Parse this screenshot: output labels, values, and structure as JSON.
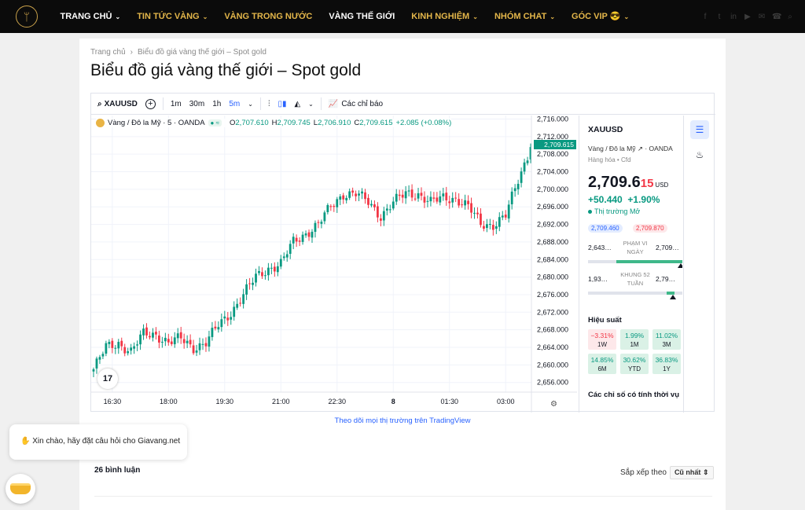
{
  "nav": {
    "items": [
      {
        "label": "TRANG CHỦ",
        "has_dropdown": true,
        "color": "white"
      },
      {
        "label": "TIN TỨC VÀNG",
        "has_dropdown": true,
        "color": "gold"
      },
      {
        "label": "VÀNG TRONG NƯỚC",
        "has_dropdown": false,
        "color": "gold"
      },
      {
        "label": "VÀNG THẾ GIỚI",
        "has_dropdown": false,
        "color": "white"
      },
      {
        "label": "KINH NGHIỆM",
        "has_dropdown": true,
        "color": "gold"
      },
      {
        "label": "NHÓM CHAT",
        "has_dropdown": true,
        "color": "gold"
      },
      {
        "label": "GÓC VIP 😎",
        "has_dropdown": true,
        "color": "gold"
      }
    ],
    "social_icons": [
      "facebook-icon",
      "twitter-icon",
      "linkedin-icon",
      "youtube-icon",
      "email-icon",
      "phone-icon",
      "search-icon"
    ],
    "gold_color": "#e3b64a"
  },
  "breadcrumb": {
    "home": "Trang chủ",
    "current": "Biểu đồ giá vàng thế giới – Spot gold"
  },
  "page_title": "Biểu đồ giá vàng thế giới – Spot gold",
  "toolbar": {
    "symbol": "XAUUSD",
    "intervals": [
      "1m",
      "30m",
      "1h",
      "5m"
    ],
    "active_interval": "5m",
    "indicators_label": "Các chỉ báo"
  },
  "legend": {
    "title": "Vàng / Đô la Mỹ · 5 · OANDA",
    "o_key": "O",
    "o": "2,707.610",
    "h_key": "H",
    "h": "2,709.745",
    "l_key": "L",
    "l": "2,706.910",
    "c_key": "C",
    "c": "2,709.615",
    "change": "+2.085 (+0.08%)"
  },
  "price_tag": "2,709.615",
  "chart_data": {
    "type": "candlestick",
    "y_ticks": [
      2716,
      2712,
      2708,
      2704,
      2700,
      2696,
      2692,
      2688,
      2684,
      2680,
      2676,
      2672,
      2668,
      2664,
      2660,
      2656
    ],
    "y_tick_labels": [
      "2,716.000",
      "2,712.000",
      "2,708.000",
      "2,704.000",
      "2,700.000",
      "2,696.000",
      "2,692.000",
      "2,688.000",
      "2,684.000",
      "2,680.000",
      "2,676.000",
      "2,672.000",
      "2,668.000",
      "2,664.000",
      "2,660.000",
      "2,656.000"
    ],
    "ylim": [
      2653.8,
      2716.8
    ],
    "x_tick_labels": [
      "16:30",
      "18:00",
      "19:30",
      "21:00",
      "22:30",
      "8",
      "01:30",
      "03:00"
    ],
    "x_tick_positions": [
      6,
      24,
      42,
      60,
      78,
      96,
      114,
      132
    ],
    "x_count": 141,
    "up_color": "#089981",
    "down_color": "#f23645",
    "close_anchors": [
      [
        0,
        2659
      ],
      [
        4,
        2664
      ],
      [
        8,
        2665
      ],
      [
        12,
        2663
      ],
      [
        16,
        2667
      ],
      [
        20,
        2667
      ],
      [
        24,
        2665
      ],
      [
        28,
        2666
      ],
      [
        32,
        2664
      ],
      [
        36,
        2665
      ],
      [
        40,
        2669
      ],
      [
        44,
        2672
      ],
      [
        48,
        2676
      ],
      [
        52,
        2680
      ],
      [
        56,
        2682
      ],
      [
        60,
        2683
      ],
      [
        64,
        2688
      ],
      [
        68,
        2690
      ],
      [
        72,
        2692
      ],
      [
        76,
        2696
      ],
      [
        80,
        2699
      ],
      [
        84,
        2699
      ],
      [
        88,
        2697
      ],
      [
        92,
        2694
      ],
      [
        96,
        2697
      ],
      [
        100,
        2699
      ],
      [
        104,
        2699
      ],
      [
        108,
        2697
      ],
      [
        112,
        2698
      ],
      [
        116,
        2698
      ],
      [
        120,
        2696
      ],
      [
        124,
        2692
      ],
      [
        128,
        2692
      ],
      [
        132,
        2694
      ],
      [
        136,
        2702
      ],
      [
        140,
        2709.615
      ]
    ]
  },
  "sidebar": {
    "symbol": "XAUUSD",
    "exchange": "Vàng / Đô la Mỹ",
    "broker": "OANDA",
    "category": "Hàng hóa",
    "type": "Cfd",
    "price_main": "2,709.6",
    "price_frac": "15",
    "currency": "USD",
    "change": "+50.440",
    "change_pct": "+1.90%",
    "market_status": "Thị trường Mở",
    "bid": "2,709.460",
    "ask": "2,709.870",
    "day_low": "2,643…",
    "day_high": "2,709…",
    "day_label": "PHẠM VI NGÀY",
    "day_fill": 0.7,
    "wk_low": "1,93…",
    "wk_high": "2,79…",
    "wk_label": "KHUNG 52 TUẦN",
    "wk_fill": 0.92,
    "perf_title": "Hiệu suất",
    "performance": [
      {
        "value": "−3.31%",
        "label": "1W",
        "dir": "neg"
      },
      {
        "value": "1.99%",
        "label": "1M",
        "dir": "pos"
      },
      {
        "value": "11.02%",
        "label": "3M",
        "dir": "pos"
      },
      {
        "value": "14.85%",
        "label": "6M",
        "dir": "pos"
      },
      {
        "value": "30.62%",
        "label": "YTD",
        "dir": "pos"
      },
      {
        "value": "36.83%",
        "label": "1Y",
        "dir": "pos"
      }
    ],
    "tech_title": "Các chỉ số có tính thời vụ"
  },
  "tv_link": "Theo dõi mọi thị trường trên TradingView",
  "comments": {
    "count_label": "26 bình luận",
    "sort_label": "Sắp xếp theo",
    "sort_value": "Cũ nhất"
  },
  "chat": {
    "greeting": "✋ Xin chào, hãy đặt câu hỏi cho Giavang.net"
  }
}
